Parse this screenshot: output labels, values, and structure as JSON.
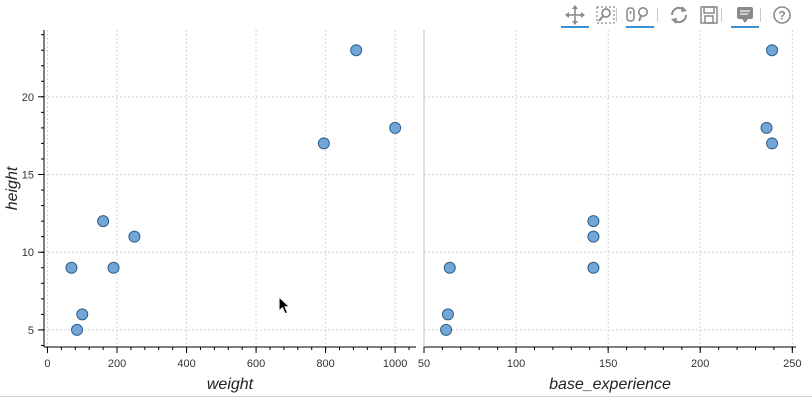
{
  "toolbar": {
    "tools": [
      {
        "name": "pan-tool",
        "icon": "pan-arrows-icon",
        "active": true
      },
      {
        "name": "box-zoom-tool",
        "icon": "box-zoom-icon",
        "active": false
      },
      {
        "name": "wheel-zoom-tool",
        "icon": "wheel-zoom-icon",
        "active": true
      },
      {
        "name": "reset-tool",
        "icon": "reset-icon",
        "active": false
      },
      {
        "name": "save-tool",
        "icon": "save-icon",
        "active": false
      },
      {
        "name": "hover-tool",
        "icon": "hover-tooltip-icon",
        "active": true
      },
      {
        "name": "help-tool",
        "icon": "help-icon",
        "active": false
      }
    ],
    "active_color": "#3a92cf"
  },
  "colors": {
    "point_fill": "#72a6d6",
    "point_stroke": "#2c5f8a",
    "grid": "#d4d4d4",
    "axis": "#000000"
  },
  "chart_data": [
    {
      "type": "scatter",
      "xlabel": "weight",
      "ylabel": "height",
      "xlim": [
        -10,
        1060
      ],
      "ylim": [
        3.9,
        24.3
      ],
      "xticks": [
        0,
        200,
        400,
        600,
        800,
        1000
      ],
      "yticks": [
        5,
        10,
        15,
        20
      ],
      "grid": true,
      "points": [
        {
          "x": 69,
          "y": 9
        },
        {
          "x": 85,
          "y": 5
        },
        {
          "x": 100,
          "y": 6
        },
        {
          "x": 160,
          "y": 12
        },
        {
          "x": 190,
          "y": 9
        },
        {
          "x": 250,
          "y": 11
        },
        {
          "x": 795,
          "y": 17
        },
        {
          "x": 888,
          "y": 23
        },
        {
          "x": 1000,
          "y": 18
        }
      ]
    },
    {
      "type": "scatter",
      "xlabel": "base_experience",
      "ylabel": "",
      "xlim": [
        50,
        252
      ],
      "ylim": [
        3.9,
        24.3
      ],
      "xticks": [
        50,
        100,
        150,
        200,
        250
      ],
      "yticks": [
        5,
        10,
        15,
        20
      ],
      "grid": true,
      "points": [
        {
          "x": 64,
          "y": 9
        },
        {
          "x": 62,
          "y": 5
        },
        {
          "x": 63,
          "y": 6
        },
        {
          "x": 142,
          "y": 12
        },
        {
          "x": 142,
          "y": 11
        },
        {
          "x": 142,
          "y": 9
        },
        {
          "x": 236,
          "y": 18
        },
        {
          "x": 239,
          "y": 17
        },
        {
          "x": 239,
          "y": 23
        }
      ]
    }
  ]
}
